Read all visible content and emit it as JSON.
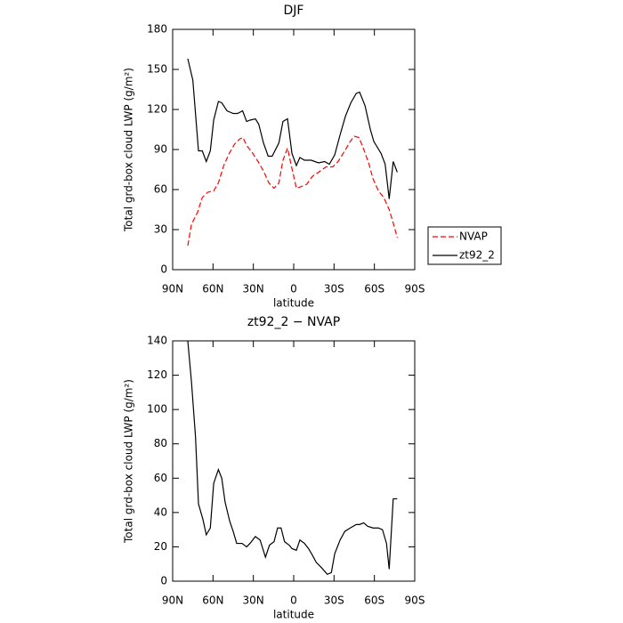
{
  "chart_data": [
    {
      "type": "line",
      "title": "DJF",
      "x_label": "latitude",
      "y_label": "Total grd-box cloud LWP (g/m²)",
      "xlim": [
        90,
        -90
      ],
      "xticks": [
        {
          "value": 90,
          "label": "90N"
        },
        {
          "value": 60,
          "label": "60N"
        },
        {
          "value": 30,
          "label": "30N"
        },
        {
          "value": 0,
          "label": "0"
        },
        {
          "value": -30,
          "label": "30S"
        },
        {
          "value": -60,
          "label": "60S"
        },
        {
          "value": -90,
          "label": "90S"
        }
      ],
      "ylim": [
        0,
        180
      ],
      "yticks": [
        0,
        30,
        60,
        90,
        120,
        150,
        180
      ],
      "legend": "right",
      "series": [
        {
          "name": "NVAP",
          "color": "#ff0000",
          "linestyle": "dashed",
          "x": [
            78.75,
            76,
            71.5,
            68,
            64,
            59.5,
            56,
            52,
            48,
            44,
            40,
            37.7,
            35,
            31,
            26.5,
            22.5,
            18.5,
            14.6,
            11,
            8,
            4.6,
            2,
            -2,
            -5,
            -9.7,
            -14,
            -18.5,
            -24,
            -29,
            -33,
            -38,
            -42,
            -45,
            -48.6,
            -52.5,
            -56,
            -59,
            -63,
            -67,
            -71,
            -74,
            -77
          ],
          "values": [
            18,
            34,
            43,
            54,
            58,
            59,
            65,
            78,
            87,
            94,
            98,
            99,
            93,
            88,
            81,
            74,
            65,
            61,
            65,
            82,
            91,
            79,
            61,
            62,
            64,
            70,
            73,
            77,
            77,
            81,
            89,
            96,
            100,
            99,
            89,
            79,
            68,
            59,
            54,
            45,
            35,
            24
          ]
        },
        {
          "name": "zt92_2",
          "color": "#000000",
          "linestyle": "solid",
          "x": [
            78.75,
            75,
            70.8,
            68,
            65,
            62,
            59.5,
            56,
            53.5,
            49.6,
            45,
            41.7,
            38,
            35,
            32.5,
            28.5,
            26,
            22.5,
            19,
            16,
            11,
            8,
            4.6,
            1.3,
            -2,
            -4.6,
            -8,
            -13,
            -18.5,
            -23,
            -26.5,
            -30.5,
            -34.5,
            -38.5,
            -42.5,
            -46.5,
            -49,
            -53,
            -57,
            -59.6,
            -65,
            -68,
            -71,
            -74,
            -77
          ],
          "values": [
            158,
            142,
            89,
            89,
            81,
            89,
            112,
            126,
            125,
            119,
            117,
            117,
            119,
            111,
            112,
            113,
            109,
            95,
            85,
            85,
            95,
            111,
            113,
            87,
            78,
            84,
            82,
            82,
            80,
            81,
            79,
            86,
            101,
            115,
            125,
            132,
            133,
            123,
            105,
            96,
            87,
            79,
            53,
            81,
            73
          ]
        }
      ]
    },
    {
      "type": "line",
      "title": "zt92_2 − NVAP",
      "x_label": "latitude",
      "y_label": "Total grd-box cloud LWP (g/m²)",
      "xlim": [
        90,
        -90
      ],
      "xticks": [
        {
          "value": 90,
          "label": "90N"
        },
        {
          "value": 60,
          "label": "60N"
        },
        {
          "value": 30,
          "label": "30N"
        },
        {
          "value": 0,
          "label": "0"
        },
        {
          "value": -30,
          "label": "30S"
        },
        {
          "value": -60,
          "label": "60S"
        },
        {
          "value": -90,
          "label": "90S"
        }
      ],
      "ylim": [
        0,
        140
      ],
      "yticks": [
        0,
        20,
        40,
        60,
        80,
        100,
        120,
        140
      ],
      "series": [
        {
          "color": "#000000",
          "linestyle": "solid",
          "x": [
            78.75,
            76,
            73,
            70.8,
            67.5,
            65,
            62,
            59.5,
            56,
            53.5,
            51,
            47.6,
            45,
            42.4,
            38.4,
            35,
            32.5,
            28.5,
            25,
            21,
            18,
            14.6,
            12,
            9.4,
            6.8,
            3.4,
            1.3,
            -2,
            -4.6,
            -8,
            -11,
            -14,
            -16.7,
            -20.5,
            -25,
            -28,
            -30.5,
            -34.5,
            -38,
            -42,
            -46.5,
            -49,
            -52,
            -55,
            -59,
            -63,
            -66,
            -69,
            -71,
            -74,
            -77
          ],
          "values": [
            140,
            116,
            84,
            45,
            36,
            27,
            31,
            57,
            65,
            60,
            46,
            35,
            29,
            22,
            22,
            20,
            22,
            26,
            24,
            14,
            21,
            23,
            31,
            31,
            23,
            21,
            19,
            18,
            24,
            22,
            19,
            15,
            11,
            8,
            4,
            5,
            16,
            24,
            29,
            31,
            33,
            33,
            34,
            32,
            31,
            31,
            30,
            22,
            7,
            48,
            48
          ]
        }
      ]
    }
  ]
}
